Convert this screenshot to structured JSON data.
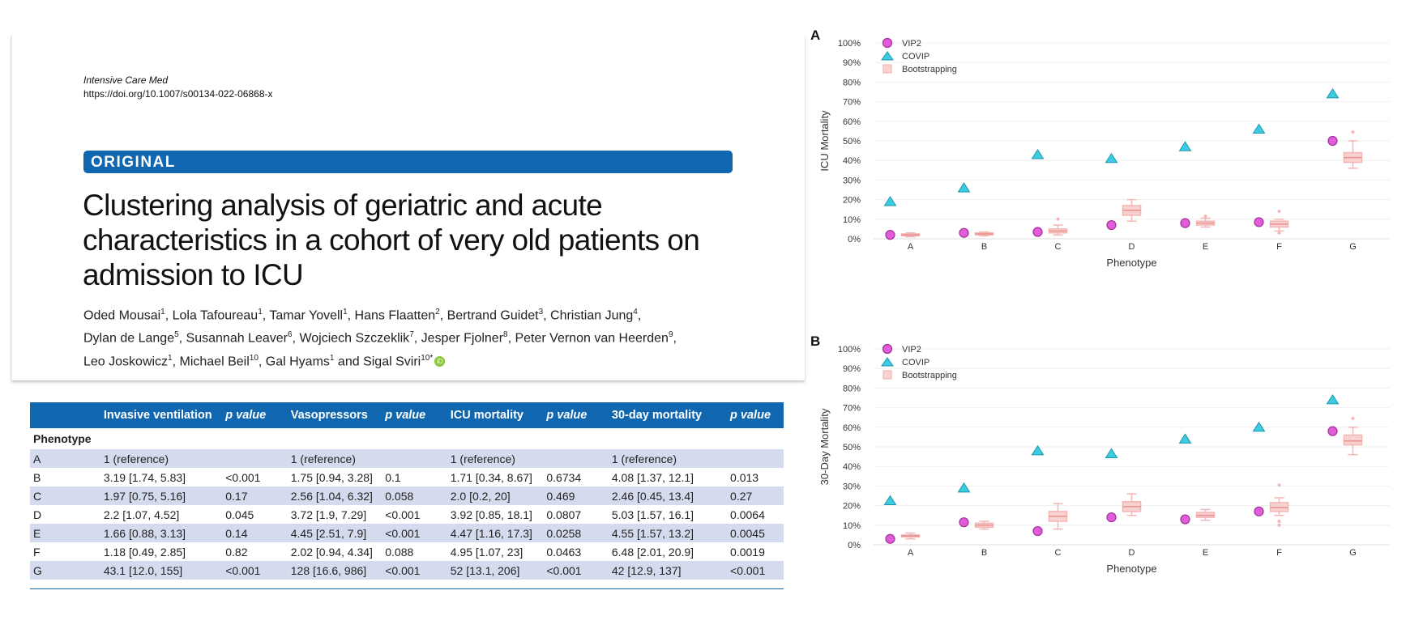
{
  "paper": {
    "journal": "Intensive Care Med",
    "doi": "https://doi.org/10.1007/s00134-022-06868-x",
    "section": "ORIGINAL",
    "title": "Clustering analysis of geriatric and acute characteristics in a cohort of very old patients on admission to ICU",
    "authors": [
      {
        "name": "Oded Mousai",
        "aff": "1",
        "sep": ", "
      },
      {
        "name": "Lola Tafoureau",
        "aff": "1",
        "sep": ", "
      },
      {
        "name": "Tamar Yovell",
        "aff": "1",
        "sep": ", "
      },
      {
        "name": "Hans Flaatten",
        "aff": "2",
        "sep": ", "
      },
      {
        "name": "Bertrand Guidet",
        "aff": "3",
        "sep": ", "
      },
      {
        "name": "Christian Jung",
        "aff": "4",
        "sep": ", "
      },
      {
        "name": "Dylan de Lange",
        "aff": "5",
        "sep": ", "
      },
      {
        "name": "Susannah Leaver",
        "aff": "6",
        "sep": ", "
      },
      {
        "name": "Wojciech Szczeklik",
        "aff": "7",
        "sep": ", "
      },
      {
        "name": "Jesper Fjolner",
        "aff": "8",
        "sep": ", "
      },
      {
        "name": "Peter Vernon van Heerden",
        "aff": "9",
        "sep": ", "
      },
      {
        "name": "Leo Joskowicz",
        "aff": "1",
        "sep": ", "
      },
      {
        "name": "Michael Beil",
        "aff": "10",
        "sep": ", "
      },
      {
        "name": "Gal Hyams",
        "aff": "1",
        "sep": " and "
      },
      {
        "name": "Sigal Sviri",
        "aff": "10*",
        "sep": ""
      }
    ]
  },
  "table": {
    "headers": [
      "",
      "Invasive ventilation",
      "p value",
      "Vasopressors",
      "p value",
      "ICU mortality",
      "p value",
      "30-day mortality",
      "p value"
    ],
    "group_label": "Phenotype",
    "rows": [
      [
        "A",
        "1 (reference)",
        "",
        "1 (reference)",
        "",
        "1 (reference)",
        "",
        "1 (reference)",
        ""
      ],
      [
        "B",
        "3.19 [1.74, 5.83]",
        "<0.001",
        "1.75 [0.94, 3.28]",
        "0.1",
        "1.71 [0.34, 8.67]",
        "0.6734",
        "4.08 [1.37, 12.1]",
        "0.013"
      ],
      [
        "C",
        "1.97 [0.75, 5.16]",
        "0.17",
        "2.56 [1.04, 6.32]",
        "0.058",
        "2.0 [0.2, 20]",
        "0.469",
        "2.46 [0.45, 13.4]",
        "0.27"
      ],
      [
        "D",
        "2.2 [1.07, 4.52]",
        "0.045",
        "3.72 [1.9, 7.29]",
        "<0.001",
        "3.92 [0.85, 18.1]",
        "0.0807",
        "5.03 [1.57, 16.1]",
        "0.0064"
      ],
      [
        "E",
        "1.66 [0.88, 3.13]",
        "0.14",
        "4.45 [2.51, 7.9]",
        "<0.001",
        "4.47 [1.16, 17.3]",
        "0.0258",
        "4.55 [1.57, 13.2]",
        "0.0045"
      ],
      [
        "F",
        "1.18 [0.49, 2.85]",
        "0.82",
        "2.02 [0.94, 4.34]",
        "0.088",
        "4.95 [1.07, 23]",
        "0.0463",
        "6.48 [2.01, 20.9]",
        "0.0019"
      ],
      [
        "G",
        "43.1 [12.0, 155]",
        "<0.001",
        "128 [16.6, 986]",
        "<0.001",
        "52 [13.1, 206]",
        "<0.001",
        "42 [12.9, 137]",
        "<0.001"
      ]
    ]
  },
  "colors": {
    "header_blue": "#1166b0",
    "band": "#d5dbee",
    "vip2": "#e05cd8",
    "covip": "#3ccbe0",
    "box": "#f4b6b4"
  },
  "chart_data": [
    {
      "type": "scatter",
      "panel": "A",
      "ylabel": "ICU Mortality",
      "xlabel": "Phenotype",
      "categories": [
        "A",
        "B",
        "C",
        "D",
        "E",
        "F",
        "G"
      ],
      "ylim": [
        0,
        100
      ],
      "yticks": [
        "0%",
        "10%",
        "20%",
        "30%",
        "40%",
        "50%",
        "60%",
        "70%",
        "80%",
        "90%",
        "100%"
      ],
      "legend": [
        "VIP2",
        "COVIP",
        "Bootstrapping"
      ],
      "legend_position": "top-left",
      "series": [
        {
          "name": "VIP2",
          "marker": "circle",
          "values": [
            2,
            3,
            3.5,
            7,
            8,
            8.5,
            50
          ]
        },
        {
          "name": "COVIP",
          "marker": "triangle",
          "values": [
            19,
            26,
            43,
            41,
            47,
            56,
            74
          ]
        }
      ],
      "boxes": {
        "name": "Bootstrapping",
        "q1": [
          1.5,
          2,
          3,
          12,
          7,
          6,
          39
        ],
        "median": [
          2,
          2.5,
          4,
          14.5,
          8,
          7.5,
          41.5
        ],
        "q3": [
          2.5,
          3,
          5,
          17,
          9,
          9,
          44
        ],
        "whisker_low": [
          1,
          1.5,
          2,
          9,
          6,
          4,
          36
        ],
        "whisker_high": [
          3,
          3.5,
          7,
          20,
          10.5,
          10,
          50
        ],
        "outliers": [
          [],
          [],
          [
            10
          ],
          [],
          [
            11.5
          ],
          [
            3,
            14
          ],
          [
            54.5
          ]
        ]
      }
    },
    {
      "type": "scatter",
      "panel": "B",
      "ylabel": "30-Day Mortality",
      "xlabel": "Phenotype",
      "categories": [
        "A",
        "B",
        "C",
        "D",
        "E",
        "F",
        "G"
      ],
      "ylim": [
        0,
        100
      ],
      "yticks": [
        "0%",
        "10%",
        "20%",
        "30%",
        "40%",
        "50%",
        "60%",
        "70%",
        "80%",
        "90%",
        "100%"
      ],
      "legend": [
        "VIP2",
        "COVIP",
        "Bootstrapping"
      ],
      "legend_position": "top-left",
      "series": [
        {
          "name": "VIP2",
          "marker": "circle",
          "values": [
            3,
            11.5,
            7,
            14,
            13,
            17,
            58
          ]
        },
        {
          "name": "COVIP",
          "marker": "triangle",
          "values": [
            22.5,
            29,
            48,
            46.5,
            54,
            60,
            74
          ]
        }
      ],
      "boxes": {
        "name": "Bootstrapping",
        "q1": [
          4,
          9,
          12,
          17,
          14,
          17,
          51
        ],
        "median": [
          4.5,
          10,
          14.5,
          19.5,
          15,
          19,
          53
        ],
        "q3": [
          5,
          11,
          17,
          22,
          16.5,
          21.5,
          56
        ],
        "whisker_low": [
          3,
          8,
          8,
          15,
          12.5,
          15,
          46
        ],
        "whisker_high": [
          6,
          12,
          21,
          26,
          18,
          24,
          60
        ],
        "outliers": [
          [],
          [],
          [],
          [],
          [],
          [
            10,
            12,
            30.5
          ],
          [
            64.5
          ]
        ]
      }
    }
  ]
}
